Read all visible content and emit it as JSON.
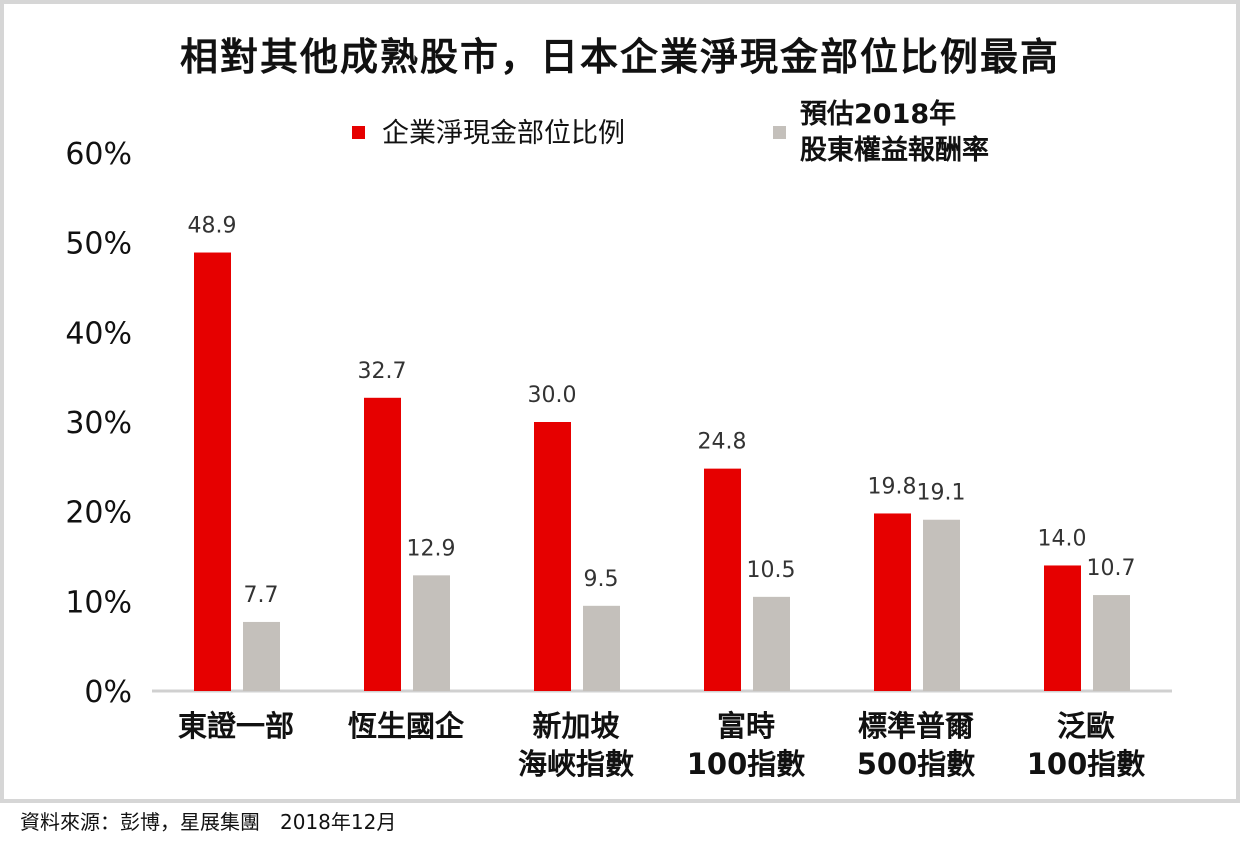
{
  "chart_data": {
    "type": "bar",
    "title": "相對其他成熟股市，日本企業淨現金部位比例最高",
    "categories": [
      [
        "東證一部"
      ],
      [
        "恆生國企"
      ],
      [
        "新加坡",
        "海峽指數"
      ],
      [
        "富時",
        "100指數"
      ],
      [
        "標準普爾",
        "500指數"
      ],
      [
        "泛歐",
        "100指數"
      ]
    ],
    "series": [
      {
        "name": "企業淨現金部位比例",
        "color": "#e60000",
        "values": [
          48.9,
          32.7,
          30.0,
          24.8,
          19.8,
          14.0
        ]
      },
      {
        "name": [
          "預估2018年",
          "股東權益報酬率"
        ],
        "color": "#c4c0bb",
        "values": [
          7.7,
          12.9,
          9.5,
          10.5,
          19.1,
          10.7
        ]
      }
    ],
    "yticks": [
      "0%",
      "10%",
      "20%",
      "30%",
      "40%",
      "50%",
      "60%"
    ],
    "ylim": [
      0,
      60
    ],
    "grid": false,
    "legend": "top-center"
  },
  "source": "資料來源：彭博，星展集團　2018年12月"
}
